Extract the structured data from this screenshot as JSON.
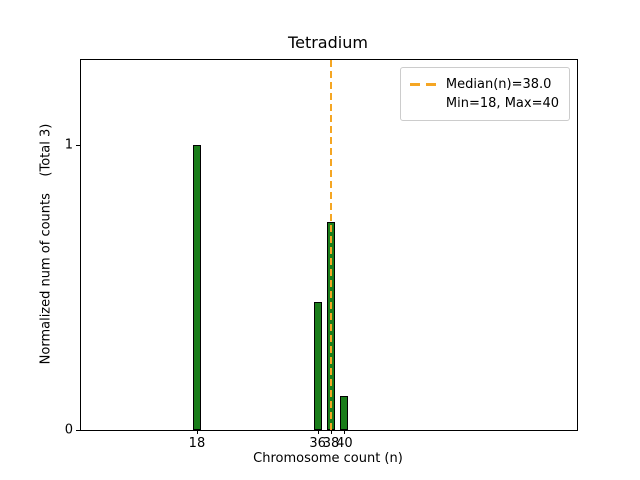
{
  "chart_data": {
    "type": "bar",
    "title": "Tetradium",
    "xlabel": "Chromosome count (n)",
    "ylabel": "Normalized num of counts    (Total 3)",
    "bars": [
      {
        "x": 18,
        "height": 1.0
      },
      {
        "x": 36,
        "height": 0.45
      },
      {
        "x": 38,
        "height": 0.73
      },
      {
        "x": 40,
        "height": 0.12
      }
    ],
    "bar_width_units": 1.2,
    "xlim": [
      0.7,
      74.7
    ],
    "ylim": [
      0,
      1.3
    ],
    "xticks": {
      "values": [
        18,
        36,
        38,
        40
      ],
      "labels": [
        "18",
        "36",
        "38",
        "40"
      ]
    },
    "yticks": {
      "values": [
        0,
        1
      ],
      "labels": [
        "0",
        "1"
      ]
    },
    "median_line": {
      "x": 38,
      "color": "#f5a623",
      "style": "dashed"
    },
    "legend": {
      "position": "upper right",
      "lines": [
        "Median(n)=38.0",
        "Min=18, Max=40"
      ]
    },
    "colors": {
      "bar_fill": "#1a7d1a",
      "bar_edge": "#000000",
      "axis": "#000000",
      "background": "#ffffff"
    },
    "grid": false
  }
}
